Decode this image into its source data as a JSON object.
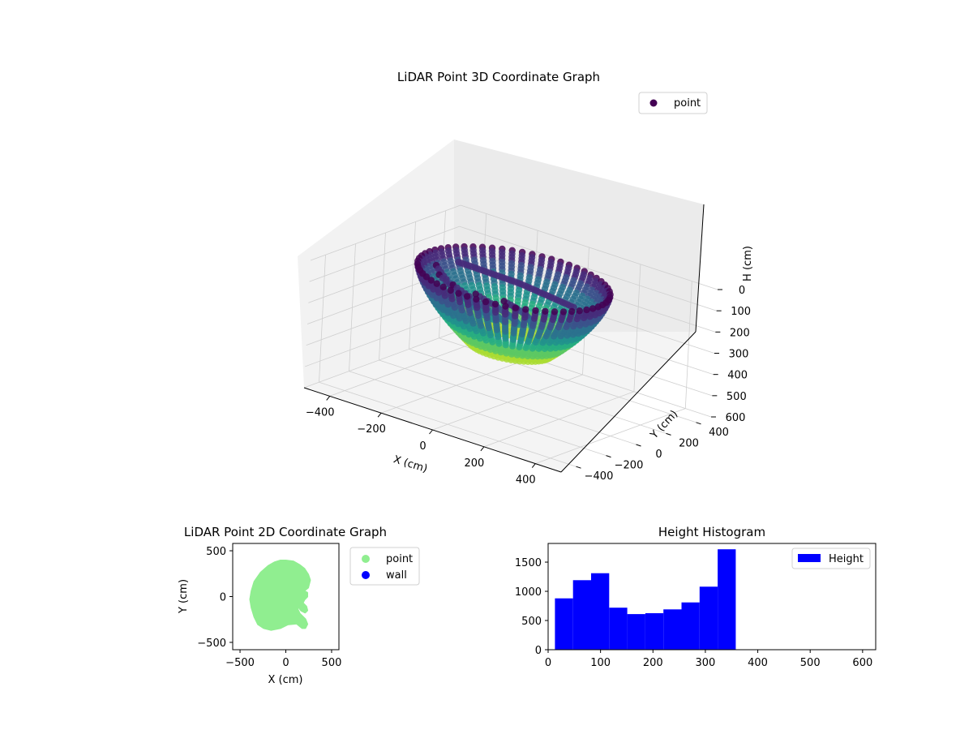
{
  "chart_data": [
    {
      "type": "scatter",
      "projection": "3d",
      "title": "LiDAR Point 3D Coordinate Graph",
      "xlabel": "X (cm)",
      "ylabel": "Y (cm)",
      "zlabel": "H (cm)",
      "xlim": [
        -500,
        500
      ],
      "ylim": [
        -500,
        500
      ],
      "zlim": [
        600,
        0
      ],
      "xticks": [
        "−400",
        "−200",
        "0",
        "200",
        "400"
      ],
      "yticks": [
        "−400",
        "−200",
        "0",
        "200",
        "400"
      ],
      "zticks": [
        "0",
        "100",
        "200",
        "300",
        "400",
        "500",
        "600"
      ],
      "colormap": "viridis",
      "legend": {
        "entries": [
          "point"
        ],
        "placement": "top-right",
        "colors": [
          "#440154"
        ]
      },
      "series": [
        {
          "name": "point",
          "description_ring_radius_cm": 330
        }
      ]
    },
    {
      "type": "scatter",
      "title": "LiDAR Point 2D Coordinate Graph",
      "xlabel": "X (cm)",
      "ylabel": "Y (cm)",
      "xlim": [
        -580,
        580
      ],
      "ylim": [
        -580,
        580
      ],
      "xticks": [
        "−500",
        "0",
        "500"
      ],
      "yticks": [
        "−500",
        "0",
        "500"
      ],
      "legend": {
        "entries": [
          "point",
          "wall"
        ],
        "placement": "outside-right",
        "colors": [
          "#90ee90",
          "#0000ff"
        ]
      },
      "series": [
        {
          "name": "point",
          "color": "#90ee90",
          "outline": [
            [
              -60,
              390
            ],
            [
              -120,
              370
            ],
            [
              -190,
              330
            ],
            [
              -270,
              260
            ],
            [
              -340,
              160
            ],
            [
              -370,
              60
            ],
            [
              -385,
              -30
            ],
            [
              -370,
              -120
            ],
            [
              -340,
              -220
            ],
            [
              -300,
              -300
            ],
            [
              -240,
              -340
            ],
            [
              -160,
              -360
            ],
            [
              -60,
              -340
            ],
            [
              20,
              -300
            ],
            [
              120,
              -290
            ],
            [
              180,
              -340
            ],
            [
              210,
              -340
            ],
            [
              230,
              -300
            ],
            [
              210,
              -250
            ],
            [
              150,
              -190
            ],
            [
              120,
              -130
            ],
            [
              140,
              -110
            ],
            [
              170,
              -150
            ],
            [
              210,
              -170
            ],
            [
              230,
              -150
            ],
            [
              220,
              -110
            ],
            [
              180,
              -70
            ],
            [
              200,
              -30
            ],
            [
              230,
              0
            ],
            [
              230,
              40
            ],
            [
              190,
              60
            ],
            [
              240,
              100
            ],
            [
              260,
              180
            ],
            [
              240,
              240
            ],
            [
              200,
              300
            ],
            [
              150,
              340
            ],
            [
              80,
              380
            ],
            [
              0,
              390
            ]
          ]
        },
        {
          "name": "wall",
          "color": "#0000ff",
          "values": []
        }
      ]
    },
    {
      "type": "bar",
      "subtype": "histogram",
      "title": "Height Histogram",
      "xlabel": "",
      "ylabel": "",
      "xlim": [
        0,
        625
      ],
      "ylim": [
        0,
        1820
      ],
      "xticks": [
        "0",
        "100",
        "200",
        "300",
        "400",
        "500",
        "600"
      ],
      "yticks": [
        "0",
        "500",
        "1000",
        "1500"
      ],
      "legend": {
        "entries": [
          "Height"
        ],
        "placement": "top-right",
        "colors": [
          "#0000ff"
        ]
      },
      "series": [
        {
          "name": "Height",
          "color": "#0000ff",
          "bin_edges": [
            13,
            47.5,
            82,
            116.5,
            151,
            185.5,
            220,
            254.5,
            289,
            323.5,
            358
          ],
          "values": [
            880,
            1190,
            1310,
            720,
            610,
            625,
            690,
            810,
            1080,
            1720
          ]
        }
      ]
    }
  ]
}
